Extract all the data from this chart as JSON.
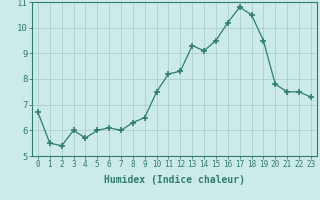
{
  "x": [
    0,
    1,
    2,
    3,
    4,
    5,
    6,
    7,
    8,
    9,
    10,
    11,
    12,
    13,
    14,
    15,
    16,
    17,
    18,
    19,
    20,
    21,
    22,
    23
  ],
  "y": [
    6.7,
    5.5,
    5.4,
    6.0,
    5.7,
    6.0,
    6.1,
    6.0,
    6.3,
    6.5,
    7.5,
    8.2,
    8.3,
    9.3,
    9.1,
    9.5,
    10.2,
    10.8,
    10.5,
    9.5,
    7.8,
    7.5,
    7.5,
    7.3
  ],
  "line_color": "#2e7d6e",
  "marker": "+",
  "marker_size": 4,
  "bg_color": "#cceaea",
  "grid_color": "#aacfcf",
  "xlabel": "Humidex (Indice chaleur)",
  "ylim": [
    5,
    11
  ],
  "xlim": [
    -0.5,
    23.5
  ],
  "yticks": [
    5,
    6,
    7,
    8,
    9,
    10,
    11
  ],
  "xticks": [
    0,
    1,
    2,
    3,
    4,
    5,
    6,
    7,
    8,
    9,
    10,
    11,
    12,
    13,
    14,
    15,
    16,
    17,
    18,
    19,
    20,
    21,
    22,
    23
  ],
  "xtick_labels": [
    "0",
    "1",
    "2",
    "3",
    "4",
    "5",
    "6",
    "7",
    "8",
    "9",
    "10",
    "11",
    "12",
    "13",
    "14",
    "15",
    "16",
    "17",
    "18",
    "19",
    "20",
    "21",
    "22",
    "23"
  ],
  "tick_color": "#2e7d6e",
  "label_color": "#2e7d6e",
  "axis_color": "#2e7d6e",
  "tick_fontsize": 5.5,
  "xlabel_fontsize": 7.0,
  "ytick_fontsize": 6.5
}
